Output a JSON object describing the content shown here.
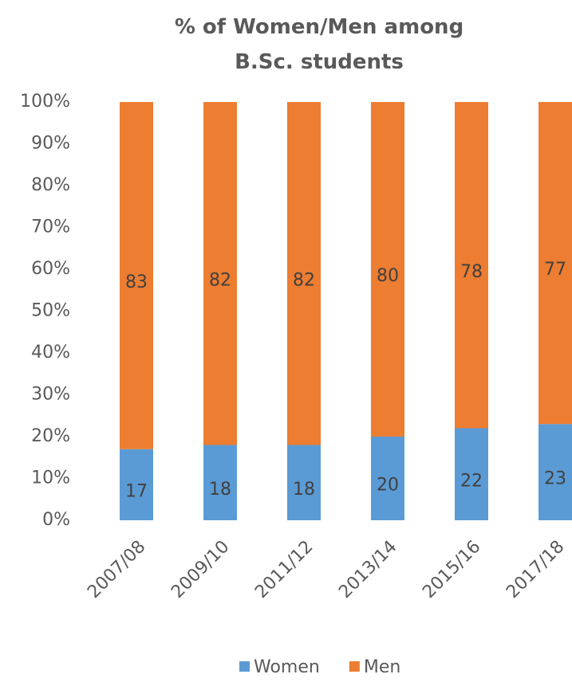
{
  "chart_data": {
    "type": "stacked_bar",
    "title": "% of Women/Men among B.Sc. students",
    "categories": [
      "2007/08",
      "2009/10",
      "2011/12",
      "2013/14",
      "2015/16",
      "2017/18"
    ],
    "series": [
      {
        "name": "Women",
        "color": "#5b9bd5",
        "values": [
          17,
          18,
          18,
          20,
          22,
          23
        ]
      },
      {
        "name": "Men",
        "color": "#ed7d31",
        "values": [
          83,
          82,
          82,
          80,
          78,
          77
        ]
      }
    ],
    "ylim": [
      0,
      100
    ],
    "yticks": [
      {
        "value": 0,
        "label": "0%"
      },
      {
        "value": 10,
        "label": "10%"
      },
      {
        "value": 20,
        "label": "20%"
      },
      {
        "value": 30,
        "label": "30%"
      },
      {
        "value": 40,
        "label": "40%"
      },
      {
        "value": 50,
        "label": "50%"
      },
      {
        "value": 60,
        "label": "60%"
      },
      {
        "value": 70,
        "label": "70%"
      },
      {
        "value": 80,
        "label": "80%"
      },
      {
        "value": 90,
        "label": "90%"
      },
      {
        "value": 100,
        "label": "100%"
      }
    ],
    "grid": false,
    "legend": "bottom"
  }
}
